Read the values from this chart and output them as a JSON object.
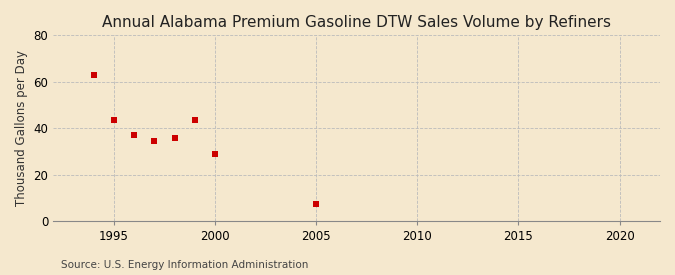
{
  "title": "Annual Alabama Premium Gasoline DTW Sales Volume by Refiners",
  "ylabel": "Thousand Gallons per Day",
  "source": "Source: U.S. Energy Information Administration",
  "background_color": "#f5e8ce",
  "plot_background_color": "#f5e8ce",
  "data_points": [
    {
      "year": 1994,
      "value": 63.0
    },
    {
      "year": 1995,
      "value": 43.5
    },
    {
      "year": 1996,
      "value": 37.0
    },
    {
      "year": 1997,
      "value": 34.5
    },
    {
      "year": 1998,
      "value": 36.0
    },
    {
      "year": 1999,
      "value": 43.5
    },
    {
      "year": 2000,
      "value": 29.0
    },
    {
      "year": 2005,
      "value": 7.5
    }
  ],
  "marker_color": "#cc0000",
  "marker_style": "s",
  "marker_size": 4,
  "xlim": [
    1992,
    2022
  ],
  "ylim": [
    0,
    80
  ],
  "xticks": [
    1995,
    2000,
    2005,
    2010,
    2015,
    2020
  ],
  "yticks": [
    0,
    20,
    40,
    60,
    80
  ],
  "grid_color": "#bbbbbb",
  "grid_linestyle": "--",
  "grid_linewidth": 0.6,
  "title_fontsize": 11,
  "label_fontsize": 8.5,
  "tick_fontsize": 8.5,
  "source_fontsize": 7.5
}
